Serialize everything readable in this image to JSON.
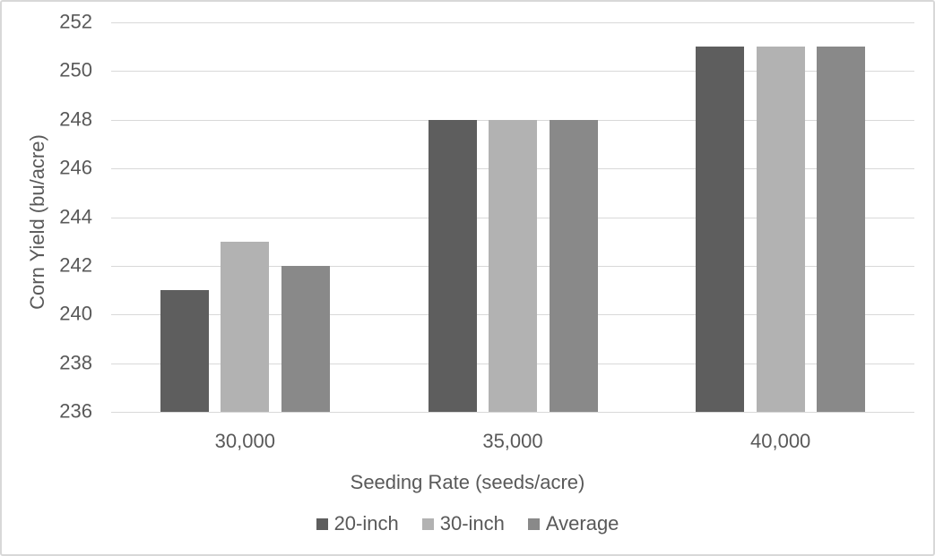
{
  "chart_data": {
    "type": "bar",
    "title": "",
    "categories": [
      "30,000",
      "35,000",
      "40,000"
    ],
    "series": [
      {
        "name": "20-inch",
        "color": "#5e5e5e",
        "values": [
          241,
          248,
          251
        ]
      },
      {
        "name": "30-inch",
        "color": "#b2b2b2",
        "values": [
          243,
          248,
          251
        ]
      },
      {
        "name": "Average",
        "color": "#898989",
        "values": [
          242,
          248,
          251
        ]
      }
    ],
    "xlabel": "Seeding Rate (seeds/acre)",
    "ylabel": "Corn Yield (bu/acre)",
    "ylim": [
      236,
      252
    ],
    "yticks": [
      236,
      238,
      240,
      242,
      244,
      246,
      248,
      250,
      252
    ],
    "grid": "horizontal",
    "gridline_color": "#d9d9d9",
    "text_color": "#595959",
    "legend_position": "bottom"
  }
}
